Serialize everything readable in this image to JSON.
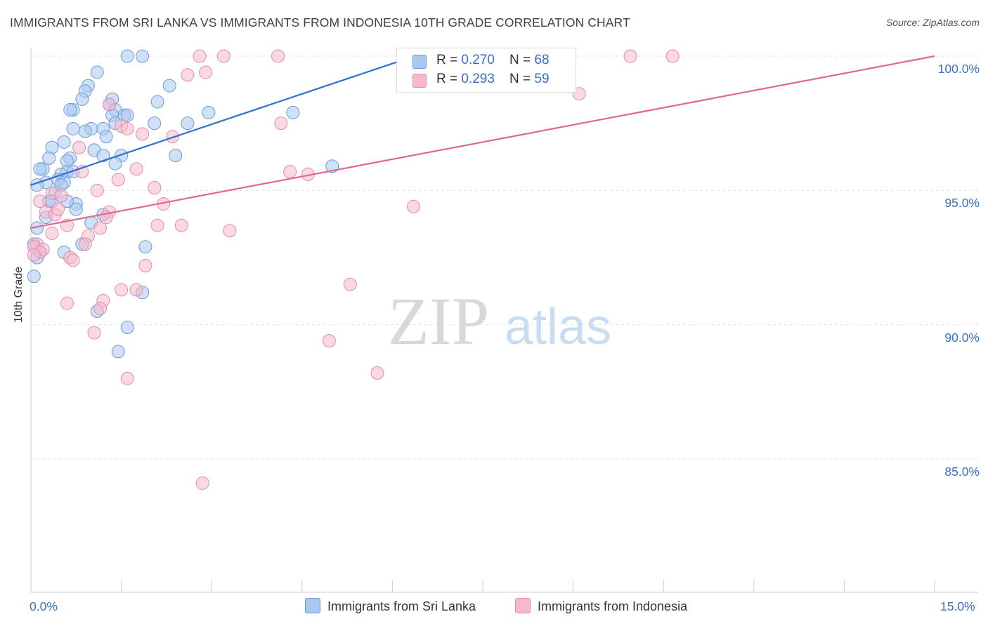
{
  "title": "IMMIGRANTS FROM SRI LANKA VS IMMIGRANTS FROM INDONESIA 10TH GRADE CORRELATION CHART",
  "source": "Source: ZipAtlas.com",
  "watermark": {
    "zip": "ZIP",
    "atlas": "atlas"
  },
  "legend_top": [
    {
      "r_label": "R = ",
      "r_value": "0.270",
      "n_label": "N = ",
      "n_value": "68"
    },
    {
      "r_label": "R = ",
      "r_value": "0.293",
      "n_label": "N = ",
      "n_value": "59"
    }
  ],
  "colors": {
    "blue_fill": "#a9c8f0",
    "blue_stroke": "#6a9bd8",
    "blue_line": "#2f6fd0",
    "pink_fill": "#f6b9cc",
    "pink_stroke": "#e68aa8",
    "pink_line": "#e06890",
    "tick_text": "#3a6fc4",
    "grid": "#e2e2e2"
  },
  "chart_data": {
    "type": "scatter",
    "title": "IMMIGRANTS FROM SRI LANKA VS IMMIGRANTS FROM INDONESIA 10TH GRADE CORRELATION CHART",
    "xlabel": "",
    "ylabel": "10th Grade",
    "xlim": [
      0,
      15
    ],
    "ylim": [
      80.5,
      100.8
    ],
    "x_tick_labels": [
      "0.0%",
      "15.0%"
    ],
    "y_ticks": [
      85,
      90,
      95,
      100
    ],
    "y_tick_labels": [
      "85.0%",
      "90.0%",
      "95.0%",
      "100.0%"
    ],
    "grid": true,
    "legend_position": "top-center",
    "series": [
      {
        "name": "Immigrants from Sri Lanka",
        "R": 0.27,
        "N": 68,
        "trend": {
          "x0": 0.0,
          "y0": 95.2,
          "x1": 6.1,
          "y1": 99.8
        },
        "points": [
          [
            1.6,
            100.0
          ],
          [
            1.85,
            100.0
          ],
          [
            1.1,
            99.4
          ],
          [
            0.95,
            98.9
          ],
          [
            0.9,
            98.7
          ],
          [
            2.3,
            98.9
          ],
          [
            0.85,
            98.4
          ],
          [
            1.35,
            98.4
          ],
          [
            2.1,
            98.3
          ],
          [
            1.3,
            98.2
          ],
          [
            0.7,
            98.0
          ],
          [
            0.65,
            98.0
          ],
          [
            1.4,
            98.0
          ],
          [
            1.55,
            97.8
          ],
          [
            1.35,
            97.8
          ],
          [
            2.95,
            97.9
          ],
          [
            4.35,
            97.9
          ],
          [
            0.7,
            97.3
          ],
          [
            1.0,
            97.3
          ],
          [
            1.2,
            97.3
          ],
          [
            1.4,
            97.5
          ],
          [
            2.05,
            97.5
          ],
          [
            2.6,
            97.5
          ],
          [
            0.9,
            97.2
          ],
          [
            1.25,
            97.0
          ],
          [
            0.55,
            96.8
          ],
          [
            0.35,
            96.6
          ],
          [
            1.05,
            96.5
          ],
          [
            1.2,
            96.3
          ],
          [
            1.5,
            96.3
          ],
          [
            2.4,
            96.3
          ],
          [
            0.3,
            96.2
          ],
          [
            0.65,
            96.2
          ],
          [
            0.6,
            96.1
          ],
          [
            1.4,
            96.0
          ],
          [
            0.2,
            95.8
          ],
          [
            0.15,
            95.8
          ],
          [
            0.6,
            95.7
          ],
          [
            0.7,
            95.7
          ],
          [
            0.5,
            95.6
          ],
          [
            0.45,
            95.4
          ],
          [
            0.25,
            95.3
          ],
          [
            0.55,
            95.3
          ],
          [
            0.1,
            95.2
          ],
          [
            0.5,
            95.2
          ],
          [
            5.0,
            95.9
          ],
          [
            0.4,
            94.9
          ],
          [
            0.3,
            94.6
          ],
          [
            0.35,
            94.6
          ],
          [
            0.75,
            94.5
          ],
          [
            0.75,
            94.3
          ],
          [
            1.2,
            94.1
          ],
          [
            0.25,
            94.0
          ],
          [
            1.0,
            93.8
          ],
          [
            0.1,
            93.6
          ],
          [
            0.05,
            93.0
          ],
          [
            0.85,
            93.0
          ],
          [
            1.9,
            92.9
          ],
          [
            0.15,
            92.7
          ],
          [
            0.55,
            92.7
          ],
          [
            0.1,
            92.5
          ],
          [
            0.05,
            91.8
          ],
          [
            1.85,
            91.2
          ],
          [
            1.1,
            90.5
          ],
          [
            1.6,
            89.9
          ],
          [
            1.45,
            89.0
          ],
          [
            0.6,
            94.6
          ],
          [
            1.6,
            97.8
          ]
        ]
      },
      {
        "name": "Immigrants from Indonesia",
        "R": 0.293,
        "N": 59,
        "trend": {
          "x0": 0.0,
          "y0": 93.6,
          "x1": 15.0,
          "y1": 100.0
        },
        "points": [
          [
            2.8,
            100.0
          ],
          [
            3.2,
            100.0
          ],
          [
            4.1,
            100.0
          ],
          [
            9.95,
            100.0
          ],
          [
            10.65,
            100.0
          ],
          [
            2.9,
            99.4
          ],
          [
            2.6,
            99.3
          ],
          [
            9.1,
            98.6
          ],
          [
            1.3,
            98.2
          ],
          [
            4.15,
            97.5
          ],
          [
            1.5,
            97.4
          ],
          [
            1.6,
            97.3
          ],
          [
            1.85,
            97.1
          ],
          [
            2.35,
            97.0
          ],
          [
            0.8,
            96.6
          ],
          [
            1.75,
            95.8
          ],
          [
            0.85,
            95.7
          ],
          [
            4.3,
            95.7
          ],
          [
            4.6,
            95.6
          ],
          [
            1.45,
            95.4
          ],
          [
            2.05,
            95.1
          ],
          [
            1.1,
            95.0
          ],
          [
            0.35,
            94.9
          ],
          [
            0.5,
            94.8
          ],
          [
            0.15,
            94.6
          ],
          [
            2.2,
            94.5
          ],
          [
            6.35,
            94.4
          ],
          [
            1.3,
            94.2
          ],
          [
            0.25,
            94.2
          ],
          [
            0.4,
            94.1
          ],
          [
            2.1,
            93.7
          ],
          [
            2.5,
            93.7
          ],
          [
            0.6,
            93.7
          ],
          [
            3.3,
            93.5
          ],
          [
            0.35,
            93.4
          ],
          [
            0.95,
            93.3
          ],
          [
            0.1,
            93.0
          ],
          [
            0.05,
            92.9
          ],
          [
            0.2,
            92.8
          ],
          [
            0.15,
            92.7
          ],
          [
            0.05,
            92.6
          ],
          [
            0.65,
            92.5
          ],
          [
            0.7,
            92.4
          ],
          [
            1.9,
            92.2
          ],
          [
            5.3,
            91.5
          ],
          [
            1.5,
            91.3
          ],
          [
            1.75,
            91.3
          ],
          [
            1.2,
            90.9
          ],
          [
            0.6,
            90.8
          ],
          [
            1.15,
            90.6
          ],
          [
            1.05,
            89.7
          ],
          [
            4.95,
            89.4
          ],
          [
            5.75,
            88.2
          ],
          [
            1.6,
            88.0
          ],
          [
            2.85,
            84.1
          ],
          [
            0.9,
            93.0
          ],
          [
            1.15,
            93.6
          ],
          [
            0.45,
            94.3
          ],
          [
            1.25,
            94.0
          ]
        ]
      }
    ]
  }
}
